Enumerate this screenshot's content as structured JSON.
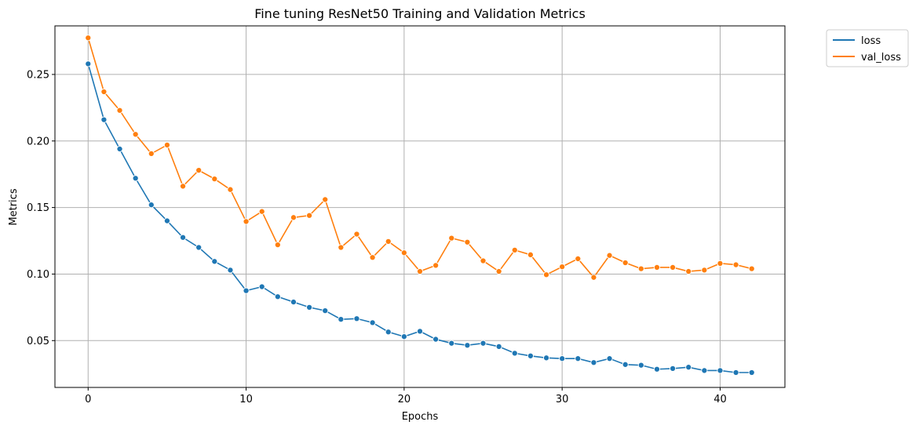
{
  "chart_data": {
    "type": "line",
    "title": "Fine tuning ResNet50 Training and Validation Metrics",
    "xlabel": "Epochs",
    "ylabel": "Metrics",
    "xlim": [
      -2.1,
      44.1
    ],
    "ylim": [
      0.0148,
      0.2865
    ],
    "xticks": [
      0,
      10,
      20,
      30,
      40
    ],
    "yticks": [
      0.05,
      0.1,
      0.15,
      0.2,
      0.25
    ],
    "xtick_labels": [
      "0",
      "10",
      "20",
      "30",
      "40"
    ],
    "ytick_labels": [
      "0.05",
      "0.10",
      "0.15",
      "0.20",
      "0.25"
    ],
    "grid": true,
    "legend_position": "outside-top-right",
    "x": [
      0,
      1,
      2,
      3,
      4,
      5,
      6,
      7,
      8,
      9,
      10,
      11,
      12,
      13,
      14,
      15,
      16,
      17,
      18,
      19,
      20,
      21,
      22,
      23,
      24,
      25,
      26,
      27,
      28,
      29,
      30,
      31,
      32,
      33,
      34,
      35,
      36,
      37,
      38,
      39,
      40,
      41,
      42
    ],
    "series": [
      {
        "name": "loss",
        "color": "#1f77b4",
        "values": [
          0.258,
          0.216,
          0.194,
          0.172,
          0.152,
          0.14,
          0.1275,
          0.12,
          0.1095,
          0.103,
          0.0875,
          0.0905,
          0.083,
          0.079,
          0.075,
          0.0725,
          0.066,
          0.0665,
          0.0635,
          0.0565,
          0.053,
          0.057,
          0.051,
          0.048,
          0.0465,
          0.048,
          0.0455,
          0.0405,
          0.0385,
          0.037,
          0.0365,
          0.0365,
          0.0335,
          0.0365,
          0.032,
          0.0315,
          0.0285,
          0.029,
          0.03,
          0.0275,
          0.0275,
          0.026,
          0.026
        ]
      },
      {
        "name": "val_loss",
        "color": "#ff7f0e",
        "values": [
          0.2775,
          0.237,
          0.223,
          0.205,
          0.1905,
          0.197,
          0.166,
          0.178,
          0.1715,
          0.1635,
          0.1395,
          0.147,
          0.122,
          0.1425,
          0.144,
          0.156,
          0.12,
          0.13,
          0.1125,
          0.1245,
          0.116,
          0.102,
          0.1065,
          0.127,
          0.124,
          0.11,
          0.102,
          0.118,
          0.1145,
          0.0995,
          0.1055,
          0.1115,
          0.0975,
          0.114,
          0.1085,
          0.104,
          0.105,
          0.105,
          0.102,
          0.103,
          0.108,
          0.107,
          0.104
        ]
      }
    ]
  }
}
